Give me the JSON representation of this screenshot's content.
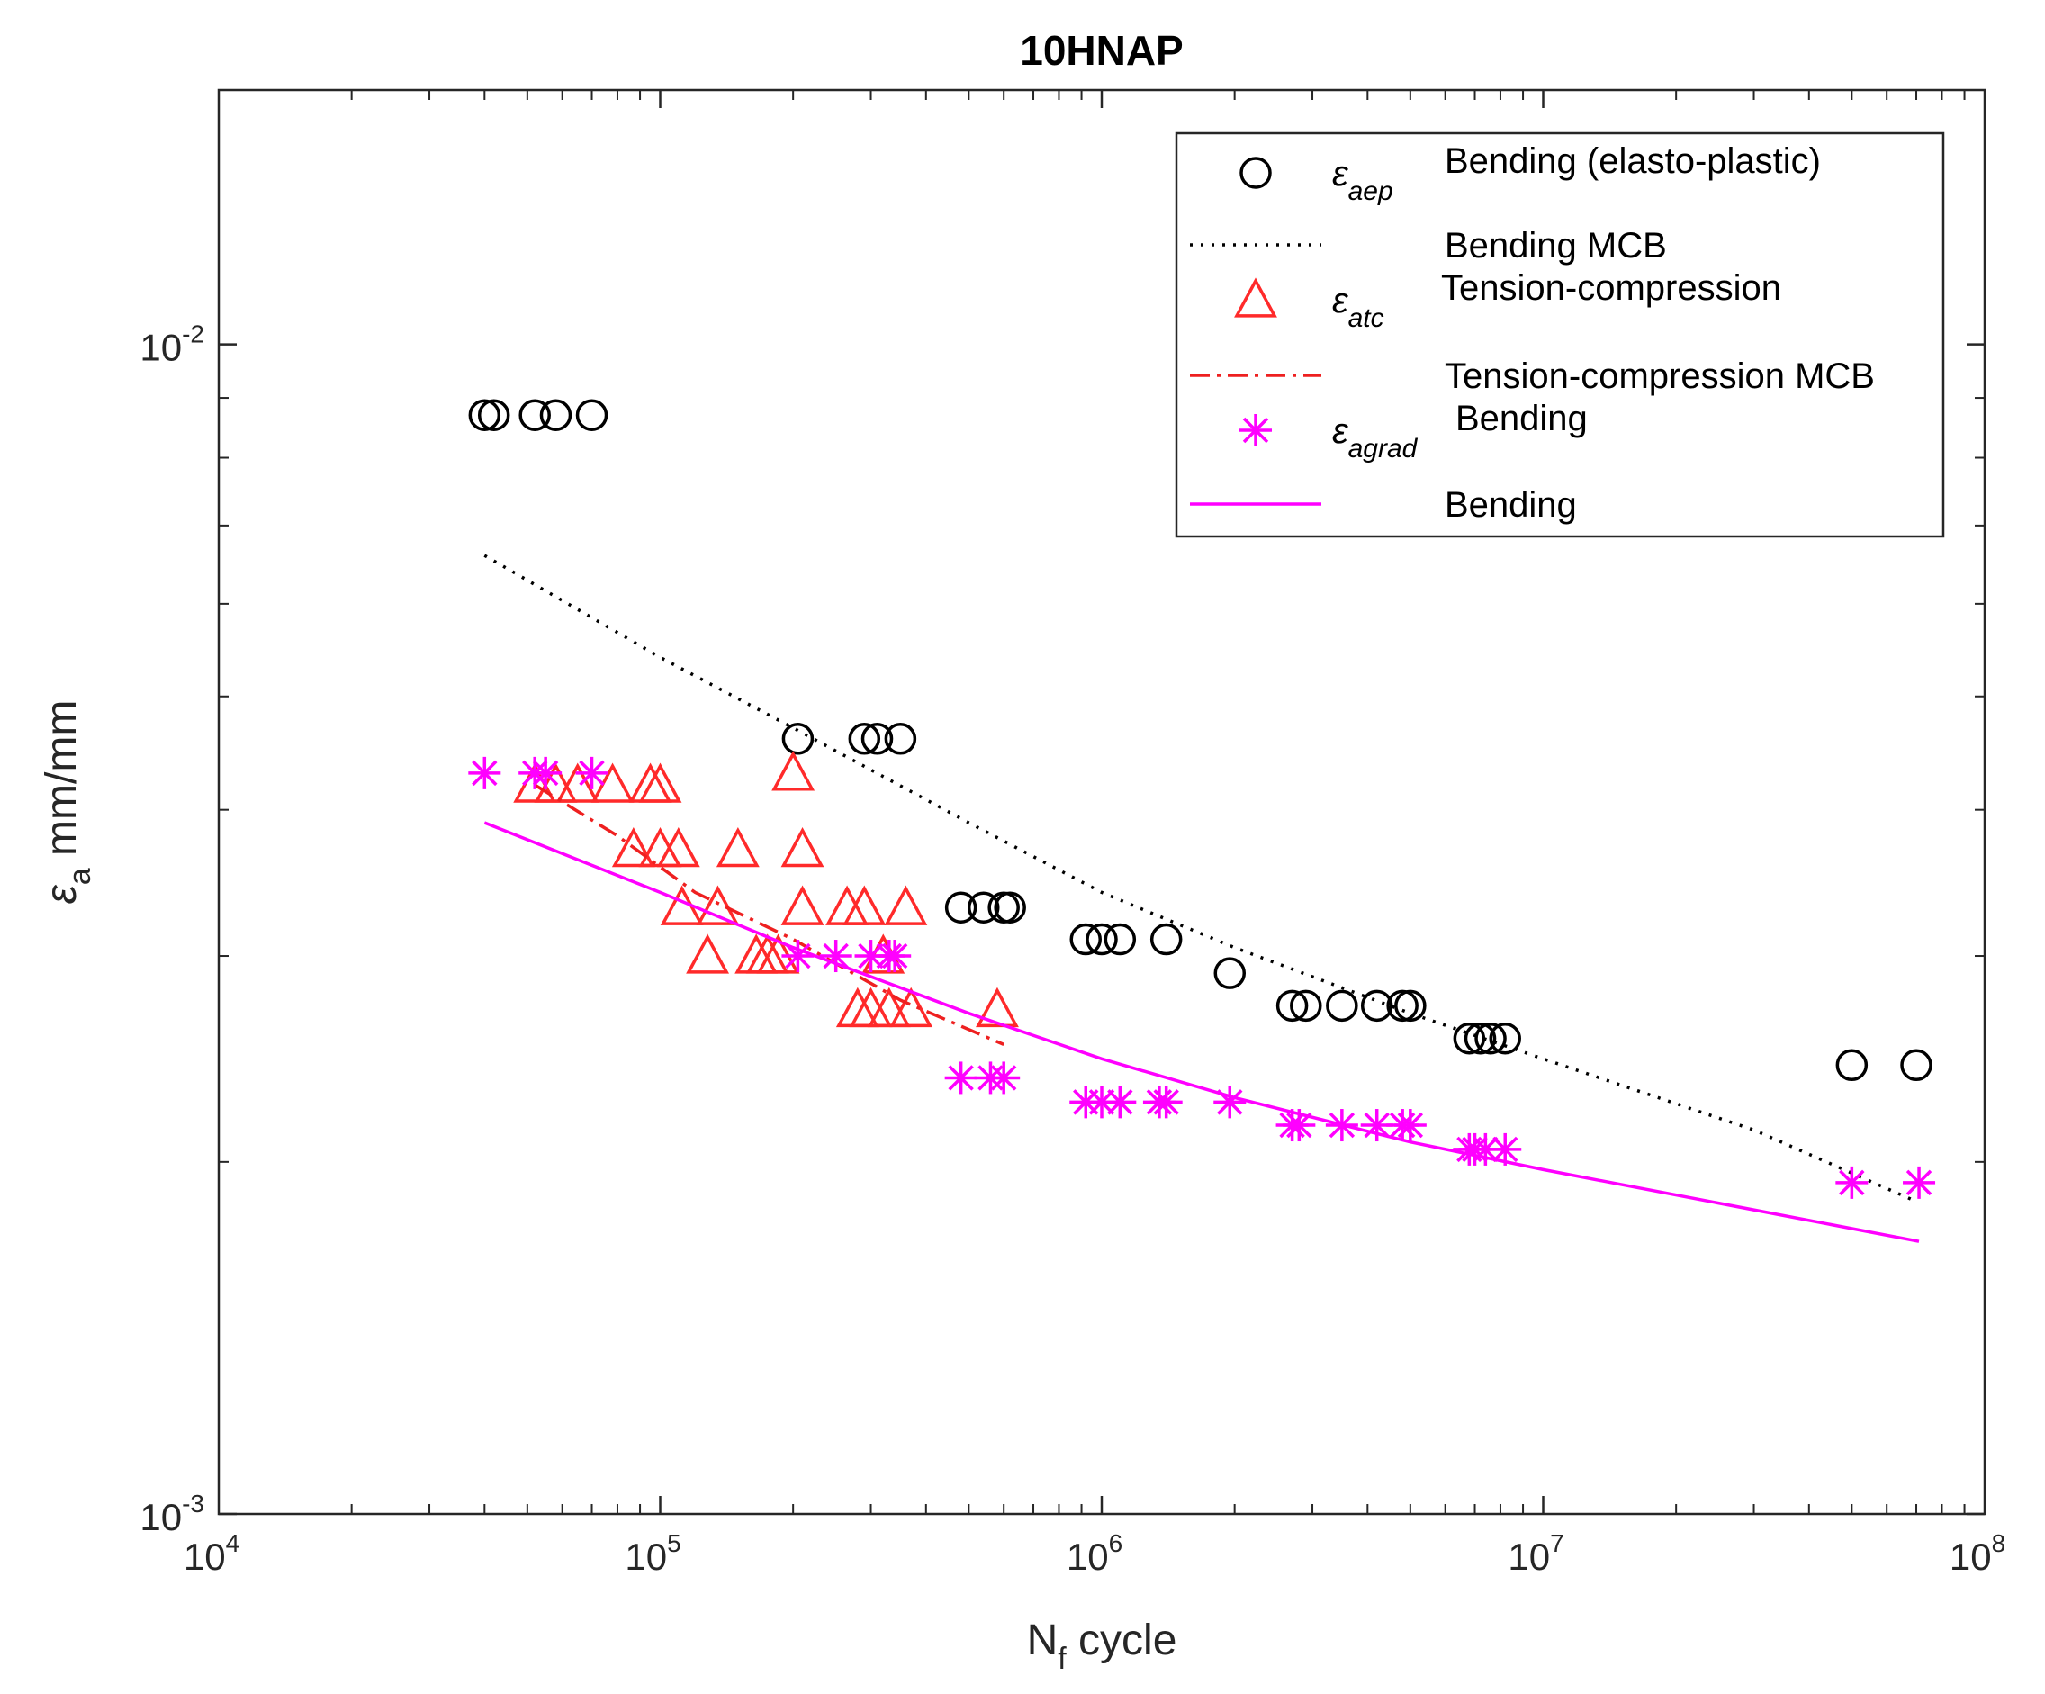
{
  "chart_data": {
    "type": "scatter",
    "title": "10HNAP",
    "xlabel": {
      "main": "N",
      "sub": "f",
      "rest": " cycle"
    },
    "ylabel": {
      "main": "ε",
      "sub": "a",
      "rest": " mm/mm"
    },
    "xscale": "log",
    "yscale": "log",
    "xlim": [
      10000,
      100000000
    ],
    "ylim": [
      0.001,
      0.0165
    ],
    "xticks": [
      {
        "base": "10",
        "exp": "4",
        "value": 10000
      },
      {
        "base": "10",
        "exp": "5",
        "value": 100000
      },
      {
        "base": "10",
        "exp": "6",
        "value": 1000000
      },
      {
        "base": "10",
        "exp": "7",
        "value": 10000000
      },
      {
        "base": "10",
        "exp": "8",
        "value": 100000000
      }
    ],
    "yticks": [
      {
        "base": "10",
        "exp": "-3",
        "value": 0.001
      },
      {
        "base": "10",
        "exp": "-2",
        "value": 0.01
      }
    ],
    "y_minor_ticks": [
      0.002,
      0.003,
      0.004,
      0.005,
      0.006,
      0.007,
      0.008,
      0.009
    ],
    "legend_position": "top-right",
    "series": [
      {
        "name": "Bending (elasto-plastic)",
        "symbol": "ε",
        "subscript": "aep",
        "marker": "circle",
        "color": "#000000",
        "x": [
          40000,
          42000,
          52000,
          58000,
          70000,
          205000,
          290000,
          310000,
          350000,
          480000,
          540000,
          600000,
          620000,
          920000,
          1000000,
          1100000,
          1400000,
          1950000,
          2700000,
          2900000,
          3500000,
          4200000,
          4800000,
          5000000,
          6800000,
          7200000,
          7600000,
          8200000,
          50000000,
          70000000
        ],
        "y": [
          0.0087,
          0.0087,
          0.0087,
          0.0087,
          0.0087,
          0.0046,
          0.0046,
          0.0046,
          0.0046,
          0.0033,
          0.0033,
          0.0033,
          0.0033,
          0.0031,
          0.0031,
          0.0031,
          0.0031,
          0.0029,
          0.00272,
          0.00272,
          0.00272,
          0.00272,
          0.00272,
          0.00272,
          0.00255,
          0.00255,
          0.00255,
          0.00255,
          0.00242,
          0.00242
        ]
      },
      {
        "name": "Bending MCB",
        "marker": "none",
        "line": "dotted",
        "color": "#000000",
        "x": [
          40000,
          100000,
          200000,
          500000,
          1000000,
          2000000,
          5000000,
          10000000,
          30000000,
          70000000
        ],
        "y": [
          0.0066,
          0.0054,
          0.0047,
          0.0039,
          0.0034,
          0.00305,
          0.00268,
          0.00245,
          0.00213,
          0.00185
        ]
      },
      {
        "name": "Tension-compression",
        "symbol": "ε",
        "subscript": "atc",
        "marker": "triangle",
        "color": "#ff2a2a",
        "x": [
          52000,
          58000,
          65000,
          78000,
          95000,
          100000,
          87000,
          100000,
          110000,
          150000,
          210000,
          112000,
          135000,
          210000,
          265000,
          290000,
          360000,
          128000,
          165000,
          175000,
          185000,
          320000,
          280000,
          300000,
          330000,
          370000,
          580000,
          200000
        ],
        "y": [
          0.0042,
          0.0042,
          0.0042,
          0.0042,
          0.0042,
          0.0042,
          0.0037,
          0.0037,
          0.0037,
          0.0037,
          0.0037,
          0.0033,
          0.0033,
          0.0033,
          0.0033,
          0.0033,
          0.0033,
          0.003,
          0.003,
          0.003,
          0.003,
          0.003,
          0.0027,
          0.0027,
          0.0027,
          0.0027,
          0.0027,
          0.0043
        ]
      },
      {
        "name": "Tension-compression MCB",
        "marker": "none",
        "line": "dashdot",
        "color": "#ee2020",
        "x": [
          52000,
          80000,
          120000,
          200000,
          350000,
          600000
        ],
        "y": [
          0.0042,
          0.0038,
          0.0034,
          0.0031,
          0.00275,
          0.00252
        ]
      },
      {
        "name": "Bending",
        "symbol": "ε",
        "subscript": "agrad",
        "marker": "asterisk",
        "color": "#ff00ff",
        "x": [
          40000,
          52000,
          55000,
          70000,
          205000,
          250000,
          300000,
          330000,
          340000,
          480000,
          560000,
          600000,
          920000,
          1000000,
          1100000,
          1350000,
          1400000,
          1950000,
          2700000,
          2800000,
          3500000,
          4200000,
          4800000,
          5000000,
          6800000,
          7000000,
          7400000,
          8200000,
          50000000,
          71000000
        ],
        "y": [
          0.0043,
          0.0043,
          0.0043,
          0.0043,
          0.003,
          0.003,
          0.003,
          0.003,
          0.003,
          0.00236,
          0.00236,
          0.00236,
          0.00225,
          0.00225,
          0.00225,
          0.00225,
          0.00225,
          0.00225,
          0.00215,
          0.00215,
          0.00215,
          0.00215,
          0.00215,
          0.00215,
          0.00205,
          0.00205,
          0.00205,
          0.00205,
          0.00192,
          0.00192
        ]
      },
      {
        "name": "Bending",
        "marker": "none",
        "line": "solid",
        "color": "#ff00ff",
        "x": [
          40000,
          100000,
          200000,
          500000,
          1000000,
          2000000,
          5000000,
          10000000,
          30000000,
          71000000
        ],
        "y": [
          0.0039,
          0.0034,
          0.00305,
          0.00268,
          0.00245,
          0.00227,
          0.00208,
          0.00197,
          0.00182,
          0.00171
        ]
      }
    ]
  }
}
